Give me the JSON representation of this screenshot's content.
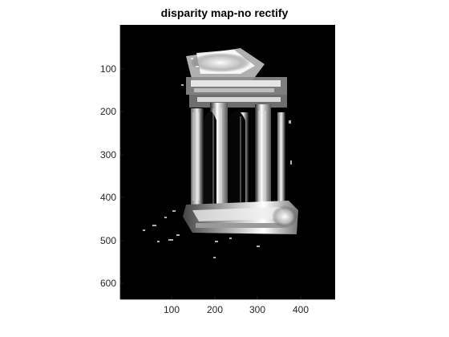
{
  "title": "disparity map-no rectify",
  "colors": {
    "background": "#ffffff",
    "image_background": "#000000",
    "axis": "#262626"
  },
  "axes": {
    "x_ticks": [
      "100",
      "200",
      "300",
      "400"
    ],
    "y_ticks": [
      "100",
      "200",
      "300",
      "400",
      "500",
      "600"
    ],
    "x_range": [
      0,
      480
    ],
    "y_range": [
      0,
      640
    ]
  },
  "image": {
    "description": "grayscale disparity map of a classical temple with columns",
    "colormap": "gray"
  }
}
